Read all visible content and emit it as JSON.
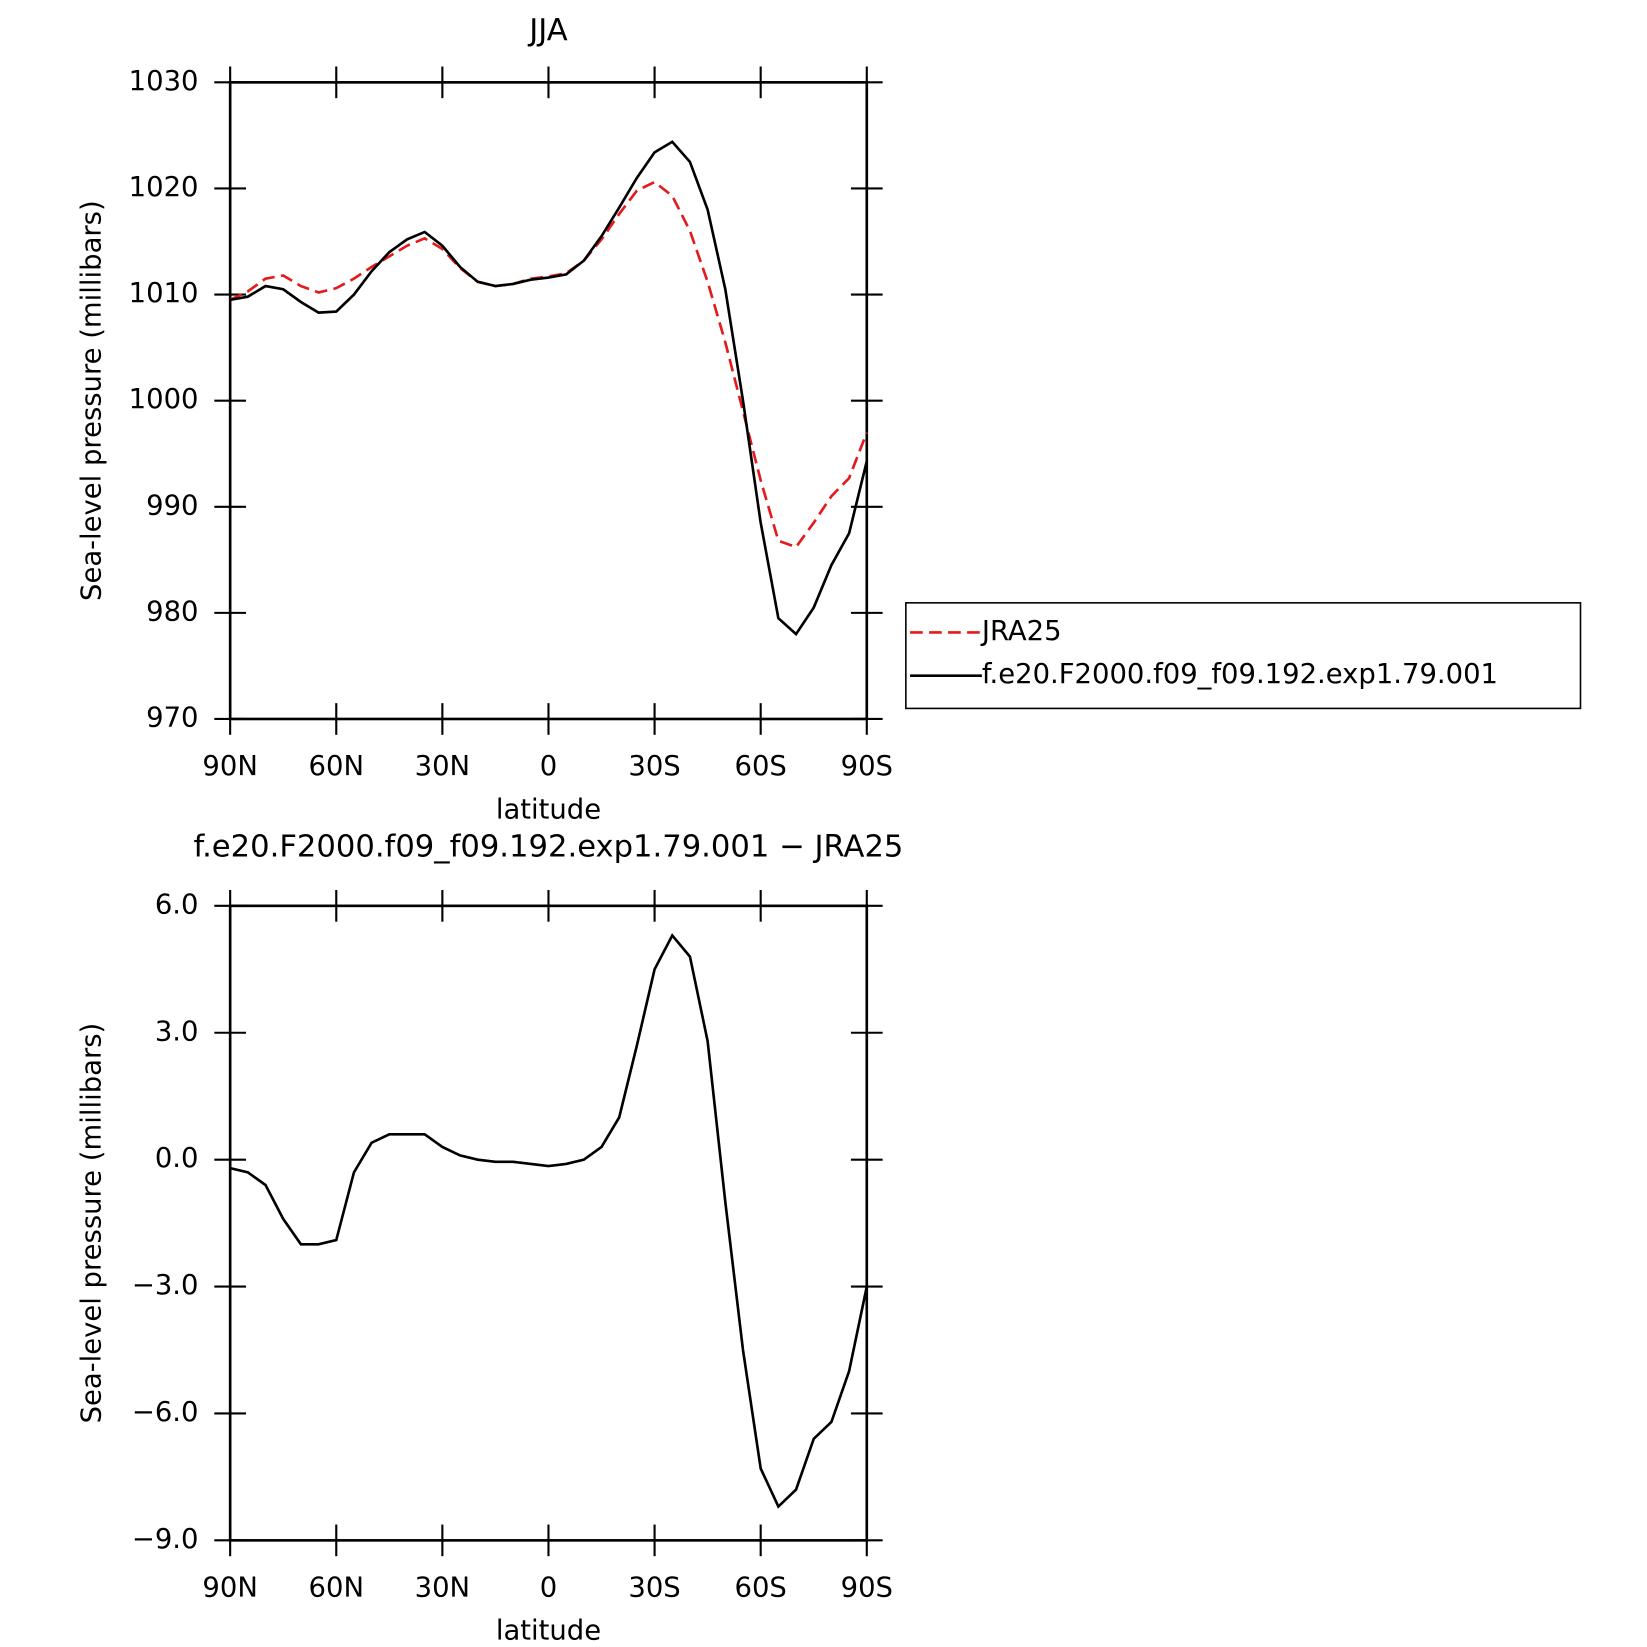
{
  "chart_data": [
    {
      "type": "line",
      "title": "JJA",
      "xlabel": "latitude",
      "ylabel": "Sea-level pressure (millibars)",
      "x": [
        90,
        85,
        80,
        75,
        70,
        65,
        60,
        55,
        50,
        45,
        40,
        35,
        30,
        25,
        20,
        15,
        10,
        5,
        0,
        -5,
        -10,
        -15,
        -20,
        -25,
        -30,
        -35,
        -40,
        -45,
        -50,
        -55,
        -60,
        -65,
        -70,
        -75,
        -80,
        -85,
        -90
      ],
      "xlim": [
        90,
        -90
      ],
      "xticks": [
        {
          "value": 90,
          "label": "90N"
        },
        {
          "value": 60,
          "label": "60N"
        },
        {
          "value": 30,
          "label": "30N"
        },
        0,
        {
          "value": -30,
          "label": "30S"
        },
        {
          "value": -60,
          "label": "60S"
        },
        {
          "value": -90,
          "label": "90S"
        }
      ],
      "ylim": [
        970,
        1030
      ],
      "yticks": [
        970,
        980,
        990,
        1000,
        1010,
        1020,
        1030
      ],
      "legend": "right",
      "series": [
        {
          "name": "JRA25",
          "color": "#e41a1c",
          "dash": true,
          "values": [
            1009.5,
            1010.3,
            1011.5,
            1011.8,
            1010.8,
            1010.2,
            1010.6,
            1011.5,
            1012.6,
            1013.6,
            1014.6,
            1015.3,
            1014.3,
            1012.5,
            1011.2,
            1010.8,
            1011.0,
            1011.5,
            1011.7,
            1012.0,
            1013.2,
            1015.2,
            1017.6,
            1019.8,
            1020.6,
            1019.3,
            1016.0,
            1011.2,
            1005.5,
            999.0,
            992.5,
            986.8,
            986.2,
            988.5,
            991.0,
            992.7,
            997.0
          ]
        },
        {
          "name": "f.e20.F2000.f09_f09.192.exp1.79.001",
          "color": "#000000",
          "dash": false,
          "values": [
            1009.5,
            1009.8,
            1010.8,
            1010.5,
            1009.3,
            1008.3,
            1008.4,
            1010.0,
            1012.2,
            1014.0,
            1015.2,
            1015.9,
            1014.6,
            1012.6,
            1011.2,
            1010.8,
            1011.0,
            1011.4,
            1011.6,
            1011.9,
            1013.2,
            1015.5,
            1018.2,
            1021.0,
            1023.4,
            1024.4,
            1022.5,
            1018.0,
            1010.5,
            1000.0,
            988.5,
            979.5,
            978.0,
            980.5,
            984.5,
            987.5,
            994.3
          ]
        }
      ]
    },
    {
      "type": "line",
      "title": "f.e20.F2000.f09_f09.192.exp1.79.001 − JRA25",
      "xlabel": "latitude",
      "ylabel": "Sea-level pressure (millibars)",
      "x": [
        90,
        85,
        80,
        75,
        70,
        65,
        60,
        55,
        50,
        45,
        40,
        35,
        30,
        25,
        20,
        15,
        10,
        5,
        0,
        -5,
        -10,
        -15,
        -20,
        -25,
        -30,
        -35,
        -40,
        -45,
        -50,
        -55,
        -60,
        -65,
        -70,
        -75,
        -80,
        -85,
        -90
      ],
      "xlim": [
        90,
        -90
      ],
      "xticks": [
        {
          "value": 90,
          "label": "90N"
        },
        {
          "value": 60,
          "label": "60N"
        },
        {
          "value": 30,
          "label": "30N"
        },
        0,
        {
          "value": -30,
          "label": "30S"
        },
        {
          "value": -60,
          "label": "60S"
        },
        {
          "value": -90,
          "label": "90S"
        }
      ],
      "ylim": [
        -9,
        6
      ],
      "yticks": [
        {
          "value": -9,
          "label": "−9.0"
        },
        {
          "value": -6,
          "label": "−6.0"
        },
        {
          "value": -3,
          "label": "−3.0"
        },
        {
          "value": 0,
          "label": "0.0"
        },
        {
          "value": 3,
          "label": "3.0"
        },
        {
          "value": 6,
          "label": "6.0"
        }
      ],
      "color": "#000000",
      "values": [
        -0.2,
        -0.3,
        -0.6,
        -1.4,
        -2.0,
        -2.0,
        -1.9,
        -0.3,
        0.4,
        0.6,
        0.6,
        0.6,
        0.3,
        0.1,
        0.0,
        -0.05,
        -0.05,
        -0.1,
        -0.15,
        -0.1,
        0.0,
        0.3,
        1.0,
        2.7,
        4.5,
        5.3,
        4.8,
        2.8,
        -1.0,
        -4.5,
        -7.3,
        -8.2,
        -7.8,
        -6.6,
        -6.2,
        -5.0,
        -3.0
      ]
    }
  ]
}
